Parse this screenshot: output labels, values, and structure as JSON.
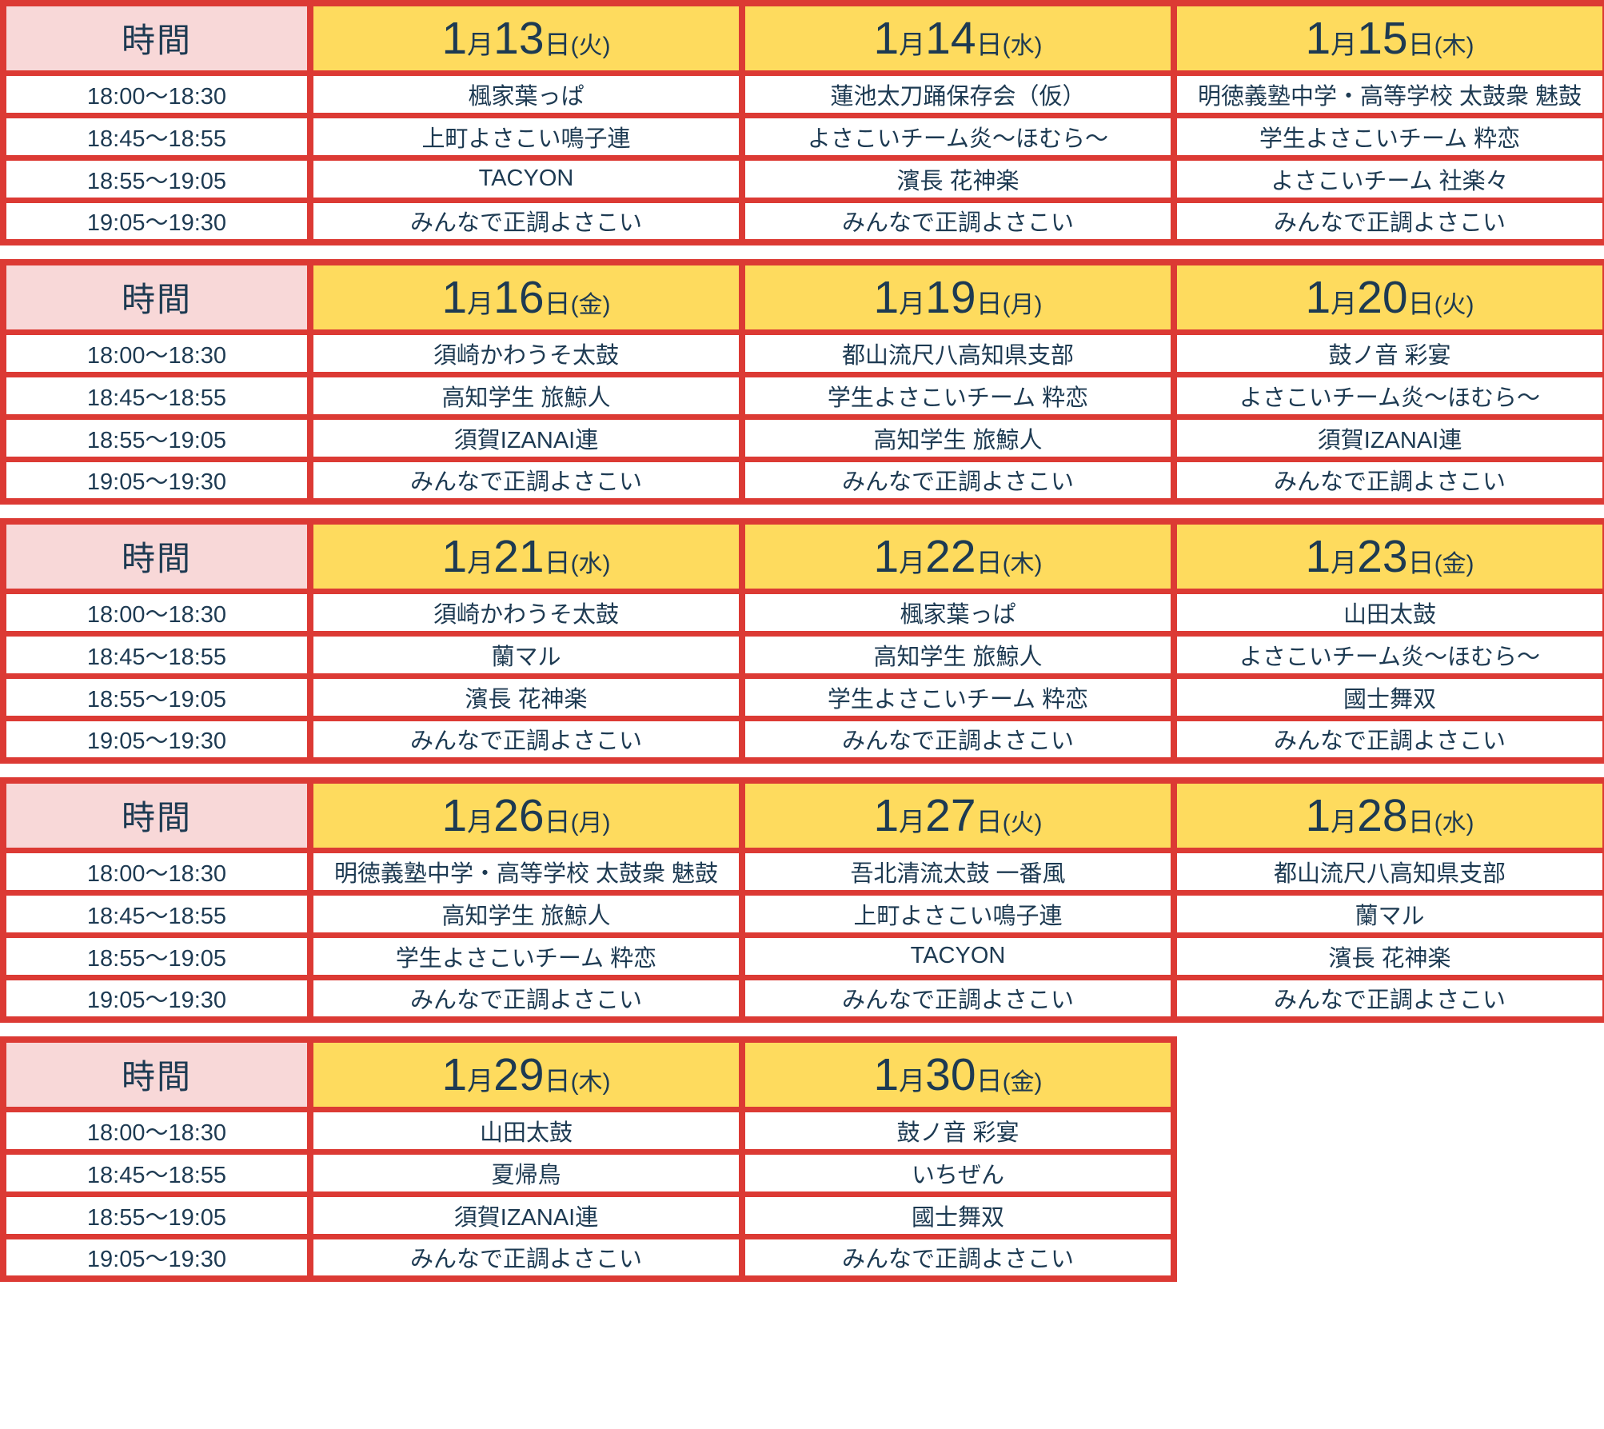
{
  "colors": {
    "border_red": "#dc3a34",
    "header_pink": "#f8d8d8",
    "header_yellow": "#fedb5e",
    "text_navy": "#1d3a52"
  },
  "schedule": {
    "time_header": "時間",
    "tables": [
      {
        "dates": [
          {
            "num1": "1",
            "unit1": "月",
            "num2": "13",
            "unit2": "日",
            "week": "(火)"
          },
          {
            "num1": "1",
            "unit1": "月",
            "num2": "14",
            "unit2": "日",
            "week": "(水)"
          },
          {
            "num1": "1",
            "unit1": "月",
            "num2": "15",
            "unit2": "日",
            "week": "(木)"
          }
        ],
        "rows": [
          {
            "time": "18:00〜18:30",
            "entries": [
              "楓家葉っぱ",
              "蓮池太刀踊保存会（仮）",
              "明徳義塾中学・高等学校 太鼓衆 魅鼓"
            ]
          },
          {
            "time": "18:45〜18:55",
            "entries": [
              "上町よさこい鳴子連",
              "よさこいチーム炎〜ほむら〜",
              "学生よさこいチーム 粋恋"
            ]
          },
          {
            "time": "18:55〜19:05",
            "entries": [
              "TACYON",
              "濱長 花神楽",
              "よさこいチーム 社楽々"
            ]
          },
          {
            "time": "19:05〜19:30",
            "entries": [
              "みんなで正調よさこい",
              "みんなで正調よさこい",
              "みんなで正調よさこい"
            ]
          }
        ]
      },
      {
        "dates": [
          {
            "num1": "1",
            "unit1": "月",
            "num2": "16",
            "unit2": "日",
            "week": "(金)"
          },
          {
            "num1": "1",
            "unit1": "月",
            "num2": "19",
            "unit2": "日",
            "week": "(月)"
          },
          {
            "num1": "1",
            "unit1": "月",
            "num2": "20",
            "unit2": "日",
            "week": "(火)"
          }
        ],
        "rows": [
          {
            "time": "18:00〜18:30",
            "entries": [
              "須崎かわうそ太鼓",
              "都山流尺八高知県支部",
              "鼓ノ音 彩宴"
            ]
          },
          {
            "time": "18:45〜18:55",
            "entries": [
              "高知学生 旅鯨人",
              "学生よさこいチーム 粋恋",
              "よさこいチーム炎〜ほむら〜"
            ]
          },
          {
            "time": "18:55〜19:05",
            "entries": [
              "須賀IZANAI連",
              "高知学生 旅鯨人",
              "須賀IZANAI連"
            ]
          },
          {
            "time": "19:05〜19:30",
            "entries": [
              "みんなで正調よさこい",
              "みんなで正調よさこい",
              "みんなで正調よさこい"
            ]
          }
        ]
      },
      {
        "dates": [
          {
            "num1": "1",
            "unit1": "月",
            "num2": "21",
            "unit2": "日",
            "week": "(水)"
          },
          {
            "num1": "1",
            "unit1": "月",
            "num2": "22",
            "unit2": "日",
            "week": "(木)"
          },
          {
            "num1": "1",
            "unit1": "月",
            "num2": "23",
            "unit2": "日",
            "week": "(金)"
          }
        ],
        "rows": [
          {
            "time": "18:00〜18:30",
            "entries": [
              "須崎かわうそ太鼓",
              "楓家葉っぱ",
              "山田太鼓"
            ]
          },
          {
            "time": "18:45〜18:55",
            "entries": [
              "蘭マル",
              "高知学生 旅鯨人",
              "よさこいチーム炎〜ほむら〜"
            ]
          },
          {
            "time": "18:55〜19:05",
            "entries": [
              "濱長 花神楽",
              "学生よさこいチーム 粋恋",
              "國士舞双"
            ]
          },
          {
            "time": "19:05〜19:30",
            "entries": [
              "みんなで正調よさこい",
              "みんなで正調よさこい",
              "みんなで正調よさこい"
            ]
          }
        ]
      },
      {
        "dates": [
          {
            "num1": "1",
            "unit1": "月",
            "num2": "26",
            "unit2": "日",
            "week": "(月)"
          },
          {
            "num1": "1",
            "unit1": "月",
            "num2": "27",
            "unit2": "日",
            "week": "(火)"
          },
          {
            "num1": "1",
            "unit1": "月",
            "num2": "28",
            "unit2": "日",
            "week": "(水)"
          }
        ],
        "rows": [
          {
            "time": "18:00〜18:30",
            "entries": [
              "明徳義塾中学・高等学校 太鼓衆 魅鼓",
              "吾北清流太鼓 一番風",
              "都山流尺八高知県支部"
            ]
          },
          {
            "time": "18:45〜18:55",
            "entries": [
              "高知学生 旅鯨人",
              "上町よさこい鳴子連",
              "蘭マル"
            ]
          },
          {
            "time": "18:55〜19:05",
            "entries": [
              "学生よさこいチーム 粋恋",
              "TACYON",
              "濱長 花神楽"
            ]
          },
          {
            "time": "19:05〜19:30",
            "entries": [
              "みんなで正調よさこい",
              "みんなで正調よさこい",
              "みんなで正調よさこい"
            ]
          }
        ]
      },
      {
        "dates": [
          {
            "num1": "1",
            "unit1": "月",
            "num2": "29",
            "unit2": "日",
            "week": "(木)"
          },
          {
            "num1": "1",
            "unit1": "月",
            "num2": "30",
            "unit2": "日",
            "week": "(金)"
          }
        ],
        "rows": [
          {
            "time": "18:00〜18:30",
            "entries": [
              "山田太鼓",
              "鼓ノ音 彩宴"
            ]
          },
          {
            "time": "18:45〜18:55",
            "entries": [
              "夏帰鳥",
              "いちぜん"
            ]
          },
          {
            "time": "18:55〜19:05",
            "entries": [
              "須賀IZANAI連",
              "國士舞双"
            ]
          },
          {
            "time": "19:05〜19:30",
            "entries": [
              "みんなで正調よさこい",
              "みんなで正調よさこい"
            ]
          }
        ]
      }
    ]
  }
}
